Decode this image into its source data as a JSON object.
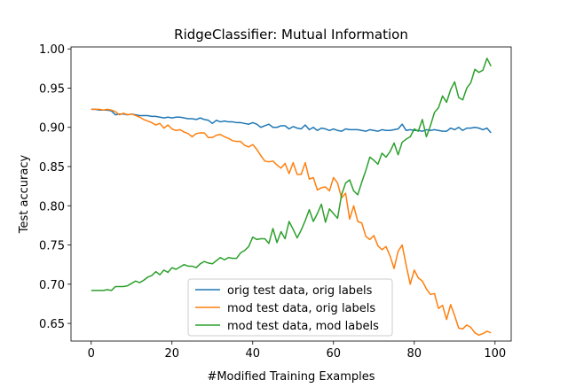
{
  "chart_data": {
    "type": "line",
    "title": "RidgeClassifier: Mutual Information",
    "xlabel": "#Modified Training Examples",
    "ylabel": "Test accuracy",
    "xlim": [
      -5,
      104
    ],
    "ylim": [
      0.6275,
      1.0025
    ],
    "xticks": [
      0,
      20,
      40,
      60,
      80,
      100
    ],
    "yticks": [
      0.65,
      0.7,
      0.75,
      0.8,
      0.85,
      0.9,
      0.95,
      1.0
    ],
    "ytick_labels": [
      "0.65",
      "0.70",
      "0.75",
      "0.80",
      "0.85",
      "0.90",
      "0.95",
      "1.00"
    ],
    "grid": false,
    "legend_position": "lower-center",
    "x": [
      0,
      1,
      2,
      3,
      4,
      5,
      6,
      7,
      8,
      9,
      10,
      11,
      12,
      13,
      14,
      15,
      16,
      17,
      18,
      19,
      20,
      21,
      22,
      23,
      24,
      25,
      26,
      27,
      28,
      29,
      30,
      31,
      32,
      33,
      34,
      35,
      36,
      37,
      38,
      39,
      40,
      41,
      42,
      43,
      44,
      45,
      46,
      47,
      48,
      49,
      50,
      51,
      52,
      53,
      54,
      55,
      56,
      57,
      58,
      59,
      60,
      61,
      62,
      63,
      64,
      65,
      66,
      67,
      68,
      69,
      70,
      71,
      72,
      73,
      74,
      75,
      76,
      77,
      78,
      79,
      80,
      81,
      82,
      83,
      84,
      85,
      86,
      87,
      88,
      89,
      90,
      91,
      92,
      93,
      94,
      95,
      96,
      97,
      98,
      99
    ],
    "series": [
      {
        "name": "orig test data, orig labels",
        "color": "#1f77b4",
        "values": [
          0.923,
          0.923,
          0.922,
          0.922,
          0.922,
          0.921,
          0.916,
          0.917,
          0.917,
          0.916,
          0.917,
          0.916,
          0.915,
          0.915,
          0.915,
          0.914,
          0.914,
          0.913,
          0.912,
          0.913,
          0.912,
          0.913,
          0.913,
          0.912,
          0.911,
          0.911,
          0.91,
          0.912,
          0.91,
          0.909,
          0.905,
          0.909,
          0.907,
          0.908,
          0.907,
          0.907,
          0.906,
          0.906,
          0.905,
          0.904,
          0.906,
          0.904,
          0.9,
          0.902,
          0.904,
          0.9,
          0.9,
          0.902,
          0.902,
          0.898,
          0.901,
          0.899,
          0.898,
          0.903,
          0.897,
          0.9,
          0.896,
          0.899,
          0.898,
          0.896,
          0.898,
          0.896,
          0.895,
          0.898,
          0.897,
          0.897,
          0.897,
          0.896,
          0.895,
          0.897,
          0.896,
          0.895,
          0.897,
          0.896,
          0.896,
          0.897,
          0.898,
          0.904,
          0.896,
          0.897,
          0.896,
          0.896,
          0.895,
          0.897,
          0.896,
          0.897,
          0.896,
          0.895,
          0.895,
          0.899,
          0.897,
          0.9,
          0.896,
          0.899,
          0.899,
          0.9,
          0.899,
          0.897,
          0.899,
          0.893
        ]
      },
      {
        "name": "mod test data, orig labels",
        "color": "#ff7f0e",
        "values": [
          0.923,
          0.923,
          0.923,
          0.922,
          0.923,
          0.922,
          0.92,
          0.916,
          0.918,
          0.916,
          0.917,
          0.915,
          0.913,
          0.91,
          0.908,
          0.906,
          0.903,
          0.905,
          0.899,
          0.903,
          0.898,
          0.896,
          0.897,
          0.894,
          0.892,
          0.888,
          0.892,
          0.893,
          0.893,
          0.887,
          0.887,
          0.89,
          0.891,
          0.888,
          0.886,
          0.883,
          0.882,
          0.882,
          0.877,
          0.875,
          0.878,
          0.872,
          0.864,
          0.857,
          0.856,
          0.857,
          0.852,
          0.848,
          0.854,
          0.841,
          0.855,
          0.84,
          0.84,
          0.855,
          0.834,
          0.836,
          0.82,
          0.823,
          0.824,
          0.819,
          0.836,
          0.829,
          0.81,
          0.816,
          0.783,
          0.8,
          0.78,
          0.778,
          0.761,
          0.757,
          0.762,
          0.749,
          0.744,
          0.748,
          0.736,
          0.72,
          0.742,
          0.75,
          0.724,
          0.7,
          0.718,
          0.708,
          0.704,
          0.694,
          0.687,
          0.688,
          0.669,
          0.673,
          0.655,
          0.674,
          0.66,
          0.644,
          0.643,
          0.648,
          0.645,
          0.638,
          0.635,
          0.637,
          0.64,
          0.638
        ]
      },
      {
        "name": "mod test data, mod labels",
        "color": "#2ca02c",
        "values": [
          0.692,
          0.692,
          0.692,
          0.692,
          0.693,
          0.692,
          0.697,
          0.697,
          0.697,
          0.698,
          0.701,
          0.704,
          0.702,
          0.705,
          0.709,
          0.711,
          0.716,
          0.712,
          0.718,
          0.715,
          0.721,
          0.719,
          0.722,
          0.725,
          0.723,
          0.723,
          0.721,
          0.726,
          0.729,
          0.727,
          0.726,
          0.73,
          0.734,
          0.731,
          0.734,
          0.733,
          0.733,
          0.74,
          0.743,
          0.748,
          0.76,
          0.757,
          0.758,
          0.758,
          0.752,
          0.771,
          0.753,
          0.767,
          0.758,
          0.78,
          0.77,
          0.759,
          0.769,
          0.781,
          0.795,
          0.78,
          0.79,
          0.802,
          0.779,
          0.796,
          0.79,
          0.784,
          0.814,
          0.829,
          0.833,
          0.819,
          0.814,
          0.83,
          0.845,
          0.862,
          0.858,
          0.853,
          0.867,
          0.862,
          0.869,
          0.88,
          0.865,
          0.881,
          0.885,
          0.888,
          0.898,
          0.895,
          0.91,
          0.888,
          0.902,
          0.919,
          0.925,
          0.94,
          0.932,
          0.948,
          0.958,
          0.938,
          0.935,
          0.95,
          0.957,
          0.974,
          0.97,
          0.973,
          0.988,
          0.978
        ]
      }
    ]
  }
}
